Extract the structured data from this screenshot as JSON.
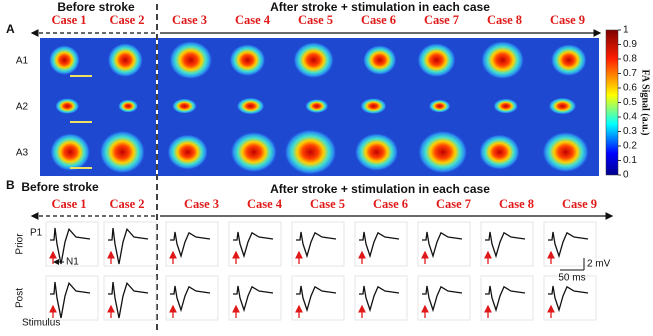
{
  "panel_a": {
    "label": "A",
    "before_label": "Before stroke",
    "after_label": "After stroke + stimulation in each case",
    "cases": [
      "Case 1",
      "Case 2",
      "Case 3",
      "Case 4",
      "Case 5",
      "Case 6",
      "Case 7",
      "Case 8",
      "Case 9"
    ],
    "rows": [
      "A1",
      "A2",
      "A3"
    ],
    "colorbar": {
      "title": "FA Signal (a.u.)",
      "ticks": [
        0,
        0.1,
        0.2,
        0.3,
        0.4,
        0.5,
        0.6,
        0.7,
        0.8,
        0.9,
        1
      ]
    }
  },
  "panel_b": {
    "label": "B",
    "before_label": "Before stroke",
    "after_label": "After stroke + stimulation in each case",
    "cases": [
      "Case 1",
      "Case 2",
      "Case 3",
      "Case 4",
      "Case 5",
      "Case 6",
      "Case 7",
      "Case 8",
      "Case 9"
    ],
    "rows": [
      "Prior",
      "Post"
    ],
    "annotations": {
      "p1": "P1",
      "n1": "N1",
      "stimulus": "Stimulus",
      "scale_voltage": "2 mV",
      "scale_time": "50 ms"
    }
  }
}
